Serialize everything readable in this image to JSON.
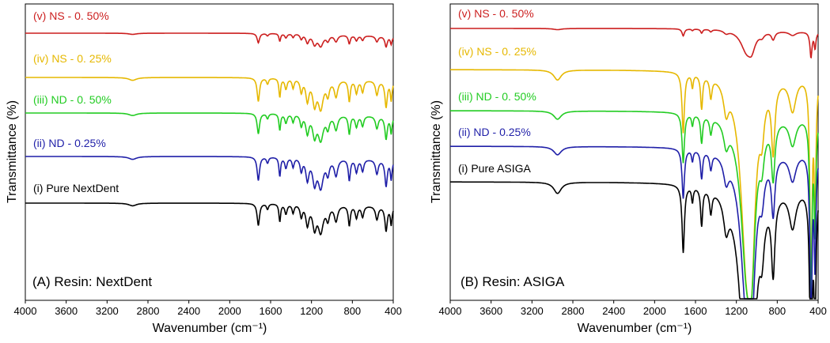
{
  "chart_data": [
    {
      "type": "line",
      "title": "(A) Resin: NextDent",
      "xlabel": "Wavenumber (cm⁻¹)",
      "ylabel": "Transmittance (%)",
      "xlim": [
        4000,
        400
      ],
      "x_ticks": [
        "4000",
        "3600",
        "3200",
        "2800",
        "2400",
        "2000",
        "1600",
        "1200",
        "800",
        "400"
      ],
      "series": [
        {
          "name": "(v) NS - 0. 50%",
          "color": "#cc1f1f"
        },
        {
          "name": "(iv) NS - 0. 25%",
          "color": "#e6b800"
        },
        {
          "name": "(iii) ND - 0. 50%",
          "color": "#22cc22"
        },
        {
          "name": "(ii) ND - 0.25%",
          "color": "#1f1fa8"
        },
        {
          "name": "(i) Pure NextDent",
          "color": "#000000"
        }
      ]
    },
    {
      "type": "line",
      "title": "(B) Resin: ASIGA",
      "xlabel": "Wavenumber (cm⁻¹)",
      "ylabel": "Transmittance (%)",
      "xlim": [
        4000,
        400
      ],
      "x_ticks": [
        "4000",
        "3600",
        "3200",
        "2800",
        "2400",
        "2000",
        "1600",
        "1200",
        "800",
        "400"
      ],
      "series": [
        {
          "name": "(v) NS - 0. 50%",
          "color": "#cc1f1f"
        },
        {
          "name": "(iv) NS - 0. 25%",
          "color": "#e6b800"
        },
        {
          "name": "(iii) ND - 0. 50%",
          "color": "#22cc22"
        },
        {
          "name": "(ii) ND - 0.25%",
          "color": "#1f1fa8"
        },
        {
          "name": "(i) Pure ASIGA",
          "color": "#000000"
        }
      ]
    }
  ]
}
